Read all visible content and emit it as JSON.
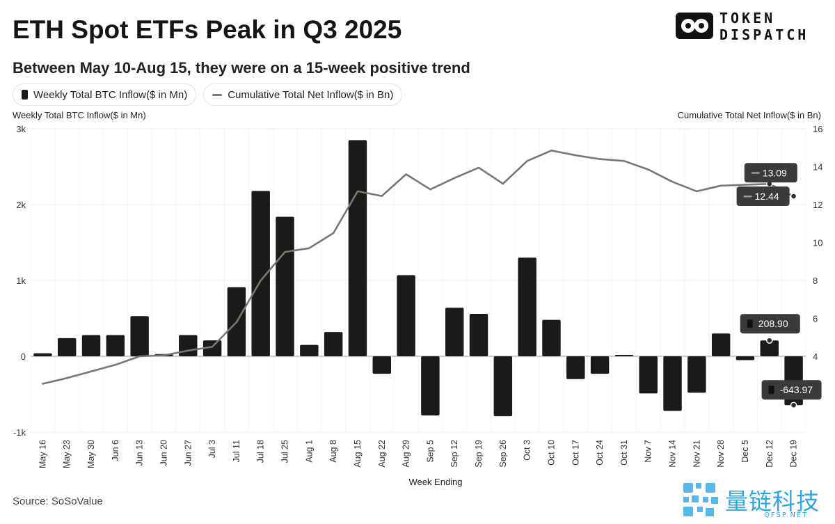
{
  "title": "ETH Spot ETFs Peak in Q3 2025",
  "subtitle": "Between May 10-Aug 15, they were on a 15-week positive trend",
  "logo": {
    "line1": "TOKEN",
    "line2": "DISPATCH"
  },
  "legend": {
    "bar_label": "Weekly Total BTC Inflow($ in Mn)",
    "line_label": "Cumulative Total Net Inflow($ in Bn)"
  },
  "source": "Source: SoSoValue",
  "watermark": {
    "text": "量链科技",
    "sub": "QFSP.NET"
  },
  "colors": {
    "bar": "#1c1a19",
    "line": "#7a7672",
    "grid": "#ededed",
    "callout": "#3a3a3a",
    "watermark": "#2ba6e6"
  },
  "chart_data": {
    "type": "bar",
    "xlabel": "Week Ending",
    "left_axis": {
      "title": "Weekly Total BTC Inflow($ in Mn)",
      "ylim": [
        -1000,
        3000
      ],
      "ticks": [
        -1000,
        0,
        1000,
        2000,
        3000
      ],
      "tick_labels": [
        "-1k",
        "0",
        "1k",
        "2k",
        "3k"
      ]
    },
    "right_axis": {
      "title": "Cumulative Total Net Inflow($ in Bn)",
      "ylim": [
        0,
        16
      ],
      "ticks": [
        0,
        2,
        4,
        6,
        8,
        10,
        12,
        14,
        16
      ],
      "tick_labels": [
        "",
        "2",
        "4",
        "6",
        "8",
        "10",
        "12",
        "14",
        "16"
      ]
    },
    "categories": [
      "May 16",
      "May 23",
      "May 30",
      "Jun 6",
      "Jun 13",
      "Jun 20",
      "Jun 27",
      "Jul 3",
      "Jul 11",
      "Jul 18",
      "Jul 25",
      "Aug 1",
      "Aug 8",
      "Aug 15",
      "Aug 22",
      "Aug 29",
      "Sep 5",
      "Sep 12",
      "Sep 19",
      "Sep 26",
      "Oct 3",
      "Oct 10",
      "Oct 17",
      "Oct 24",
      "Oct 31",
      "Nov 7",
      "Nov 14",
      "Nov 21",
      "Nov 28",
      "Dec 5",
      "Dec 12",
      "Dec 19"
    ],
    "series": [
      {
        "name": "Weekly Total BTC Inflow($ in Mn)",
        "type": "bar",
        "axis": "left",
        "values": [
          40,
          240,
          280,
          280,
          530,
          30,
          280,
          210,
          910,
          2180,
          1840,
          150,
          320,
          2850,
          -230,
          1070,
          -780,
          640,
          560,
          -790,
          1300,
          480,
          -300,
          -230,
          10,
          -490,
          -720,
          -480,
          300,
          -50,
          208.9,
          -643.97
        ]
      },
      {
        "name": "Cumulative Total Net Inflow($ in Bn)",
        "type": "line",
        "axis": "right",
        "values": [
          2.55,
          2.85,
          3.2,
          3.55,
          4.0,
          4.05,
          4.3,
          4.5,
          5.8,
          8.0,
          9.5,
          9.7,
          10.5,
          12.7,
          12.45,
          13.6,
          12.8,
          13.4,
          13.95,
          13.1,
          14.3,
          14.85,
          14.6,
          14.4,
          14.3,
          13.85,
          13.2,
          12.7,
          13.0,
          13.05,
          13.09,
          12.44
        ]
      }
    ],
    "callouts": [
      {
        "series": 1,
        "index": 30,
        "label": "13.09"
      },
      {
        "series": 1,
        "index": 31,
        "label": "12.44"
      },
      {
        "series": 0,
        "index": 30,
        "label": "208.90"
      },
      {
        "series": 0,
        "index": 31,
        "label": "-643.97"
      }
    ],
    "grid": true,
    "legend_position": "top-left"
  }
}
